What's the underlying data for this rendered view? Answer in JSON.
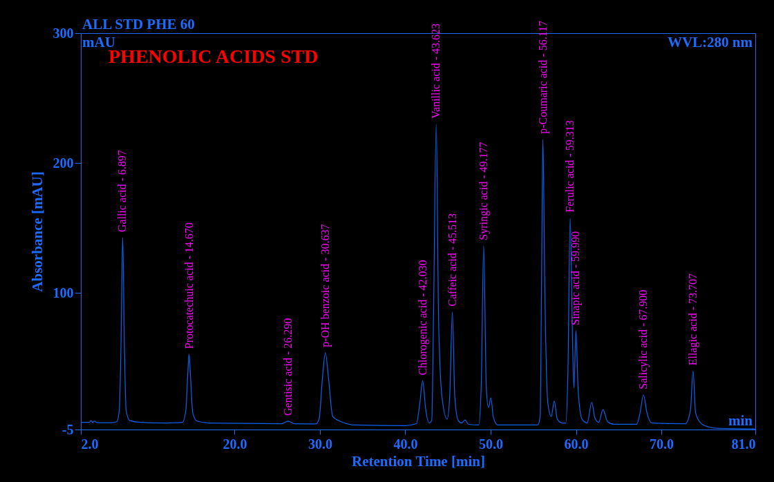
{
  "chart_data": {
    "type": "line",
    "title": "PHENOLIC ACIDS  STD",
    "xlabel": "Retention Time [min]",
    "ylabel": "Absorbance [mAU]",
    "xlim": [
      2,
      81
    ],
    "xticks": [
      {
        "value": 2,
        "label": "2.0"
      },
      {
        "value": 20,
        "label": "20.0"
      },
      {
        "value": 30,
        "label": "30.0"
      },
      {
        "value": 40,
        "label": "40.0"
      },
      {
        "value": 50,
        "label": "50.0"
      },
      {
        "value": 60,
        "label": "60.0"
      },
      {
        "value": 70,
        "label": "70.0"
      },
      {
        "value": 81,
        "label": "81.0"
      }
    ],
    "ylim": [
      -5,
      300
    ],
    "yticks": [
      -5,
      100,
      200,
      300
    ],
    "grid": false,
    "marker": "none",
    "line_style": "solid",
    "series": [
      {
        "color": "#0a64f0",
        "x": [
          2.0,
          3.0,
          3.2,
          3.4,
          3.6,
          3.8,
          4.5,
          5.5,
          6.2,
          6.5,
          6.7,
          6.897,
          7.1,
          7.3,
          7.7,
          9,
          12,
          13.9,
          14.3,
          14.5,
          14.67,
          14.85,
          15.1,
          15.6,
          17,
          25.5,
          26.29,
          27,
          29.5,
          29.9,
          30.3,
          30.637,
          31,
          31.5,
          32.5,
          34,
          40,
          41.3,
          41.7,
          42.03,
          42.4,
          42.8,
          43.1,
          43.3,
          43.623,
          43.9,
          44.3,
          44.9,
          45.2,
          45.513,
          45.8,
          46.2,
          46.6,
          47.0,
          47.4,
          48.6,
          48.9,
          49.177,
          49.5,
          49.75,
          50.03,
          50.3,
          50.8,
          55.5,
          55.8,
          55.95,
          56.117,
          56.35,
          56.7,
          57.1,
          57.45,
          57.8,
          58.4,
          58.8,
          59.05,
          59.313,
          59.6,
          59.75,
          59.99,
          60.25,
          60.7,
          61.3,
          61.85,
          62.2,
          62.66,
          63.15,
          63.7,
          64.5,
          67.1,
          67.5,
          67.9,
          68.3,
          68.9,
          72.8,
          73.4,
          73.707,
          74.0,
          74.6,
          75.5,
          76.4,
          81
        ],
        "values": [
          0.5,
          0.5,
          1.8,
          0.3,
          1.5,
          0.5,
          0.2,
          0.3,
          1,
          10,
          60,
          142.6,
          60,
          10,
          2,
          0.5,
          0,
          0.5,
          10,
          35,
          52.8,
          35,
          8,
          1.5,
          0,
          -0.5,
          1.4,
          -0.5,
          -0.7,
          3,
          35,
          54.1,
          35,
          5,
          1,
          -1.5,
          -2,
          -0.5,
          15,
          32.4,
          10,
          0,
          2,
          80,
          230,
          80,
          20,
          3,
          20,
          85.5,
          20,
          2,
          0,
          2.4,
          -1,
          -1.5,
          30,
          136.5,
          25,
          12,
          19.4,
          5,
          -1.5,
          -1.5,
          5,
          100,
          218.3,
          100,
          15,
          5,
          17,
          3,
          0,
          0,
          40,
          157.8,
          60,
          27,
          71,
          25,
          3,
          0,
          16,
          4,
          0.5,
          10.3,
          1,
          -1,
          -1,
          8,
          21.7,
          8,
          0,
          -0.5,
          10,
          40,
          8,
          0,
          -3,
          -4,
          -4.5
        ]
      }
    ],
    "annotations": [
      "ALL STD PHE 60",
      "mAU",
      "WVL:280 nm",
      "min",
      {
        "text": "Gallic acid - 6.897",
        "x": 6.897,
        "y": 142.6
      },
      {
        "text": "Protocatechuic acid - 14.670",
        "x": 14.67,
        "y": 52.8
      },
      {
        "text": "Gentisic acid - 26.290",
        "x": 26.29,
        "y": 1.4
      },
      {
        "text": "p-OH benzoic acid - 30.637",
        "x": 30.637,
        "y": 54.1
      },
      {
        "text": "Chlorogenic acid - 42.030",
        "x": 42.03,
        "y": 32.4
      },
      {
        "text": "Vanillic acid - 43.623",
        "x": 43.623,
        "y": 230
      },
      {
        "text": "Caffeic acid - 45.513",
        "x": 45.513,
        "y": 85.5
      },
      {
        "text": "Syringic acid - 49.177",
        "x": 49.177,
        "y": 136.5
      },
      {
        "text": "p-Coumaric acid - 56.117",
        "x": 56.117,
        "y": 218.3
      },
      {
        "text": "Ferulic acid - 59.313",
        "x": 59.313,
        "y": 157.8
      },
      {
        "text": "Sinapic acid - 59.990",
        "x": 59.99,
        "y": 71
      },
      {
        "text": "Salicylic acid - 67.900",
        "x": 67.9,
        "y": 21.7
      },
      {
        "text": "Ellagic acid - 73.707",
        "x": 73.707,
        "y": 40
      }
    ]
  }
}
